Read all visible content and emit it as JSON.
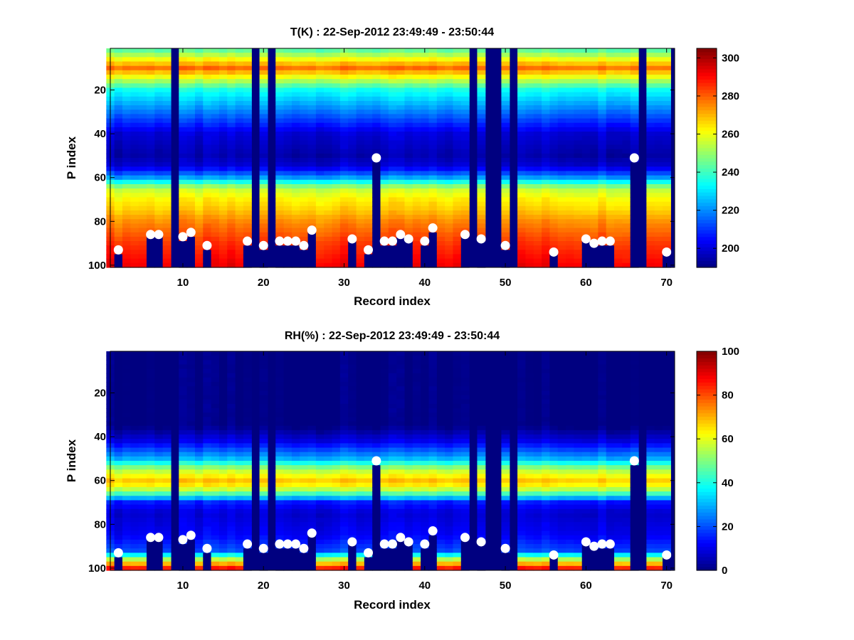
{
  "chart_data": [
    {
      "type": "heatmap",
      "title": "T(K) : 22-Sep-2012 23:49:49 - 23:50:44",
      "xlabel": "Record index",
      "ylabel": "P index",
      "x_ticks": [
        10,
        20,
        30,
        40,
        50,
        60,
        70
      ],
      "y_ticks": [
        20,
        40,
        60,
        80,
        100
      ],
      "xlim": [
        1,
        71
      ],
      "ylim": [
        1,
        101
      ],
      "y_reversed": true,
      "colormap": "jet",
      "clim": [
        190,
        305
      ],
      "colorbar_ticks": [
        200,
        220,
        240,
        260,
        280,
        300
      ],
      "missing_records": [
        9,
        19,
        21,
        46,
        48,
        49,
        51,
        67
      ],
      "profile_shape": {
        "description": "columnwise vertical profile",
        "levels": [
          1,
          10,
          20,
          30,
          40,
          50,
          55,
          60,
          65,
          70,
          75,
          80,
          85,
          90,
          100
        ],
        "values": [
          240,
          278,
          235,
          218,
          200,
          195,
          200,
          222,
          255,
          263,
          268,
          275,
          280,
          285,
          292
        ]
      },
      "marker_color": "#ffffff",
      "markers": [
        {
          "record": 2,
          "level": 93
        },
        {
          "record": 6,
          "level": 86
        },
        {
          "record": 7,
          "level": 86
        },
        {
          "record": 10,
          "level": 87
        },
        {
          "record": 11,
          "level": 85
        },
        {
          "record": 13,
          "level": 91
        },
        {
          "record": 18,
          "level": 89
        },
        {
          "record": 20,
          "level": 91
        },
        {
          "record": 22,
          "level": 89
        },
        {
          "record": 23,
          "level": 89
        },
        {
          "record": 24,
          "level": 89
        },
        {
          "record": 25,
          "level": 91
        },
        {
          "record": 26,
          "level": 84
        },
        {
          "record": 31,
          "level": 88
        },
        {
          "record": 33,
          "level": 93
        },
        {
          "record": 34,
          "level": 51
        },
        {
          "record": 35,
          "level": 89
        },
        {
          "record": 36,
          "level": 89
        },
        {
          "record": 37,
          "level": 86
        },
        {
          "record": 38,
          "level": 88
        },
        {
          "record": 40,
          "level": 89
        },
        {
          "record": 41,
          "level": 83
        },
        {
          "record": 45,
          "level": 86
        },
        {
          "record": 47,
          "level": 88
        },
        {
          "record": 50,
          "level": 91
        },
        {
          "record": 56,
          "level": 94
        },
        {
          "record": 60,
          "level": 88
        },
        {
          "record": 61,
          "level": 90
        },
        {
          "record": 62,
          "level": 89
        },
        {
          "record": 63,
          "level": 89
        },
        {
          "record": 66,
          "level": 51
        },
        {
          "record": 70,
          "level": 94
        }
      ]
    },
    {
      "type": "heatmap",
      "title": "RH(%) : 22-Sep-2012 23:49:49 - 23:50:44",
      "xlabel": "Record index",
      "ylabel": "P index",
      "x_ticks": [
        10,
        20,
        30,
        40,
        50,
        60,
        70
      ],
      "y_ticks": [
        20,
        40,
        60,
        80,
        100
      ],
      "xlim": [
        1,
        71
      ],
      "ylim": [
        1,
        101
      ],
      "y_reversed": true,
      "colormap": "jet",
      "clim": [
        0,
        100
      ],
      "colorbar_ticks": [
        0,
        20,
        40,
        60,
        80,
        100
      ],
      "missing_records": [
        9,
        19,
        21,
        46,
        48,
        49,
        51,
        67
      ],
      "profile_shape": {
        "description": "columnwise vertical profile",
        "levels": [
          1,
          35,
          42,
          50,
          55,
          60,
          63,
          66,
          70,
          75,
          85,
          92,
          96,
          100
        ],
        "values": [
          0,
          0,
          10,
          30,
          55,
          68,
          62,
          45,
          15,
          8,
          12,
          20,
          55,
          85
        ]
      },
      "marker_color": "#ffffff",
      "markers": [
        {
          "record": 2,
          "level": 93
        },
        {
          "record": 6,
          "level": 86
        },
        {
          "record": 7,
          "level": 86
        },
        {
          "record": 10,
          "level": 87
        },
        {
          "record": 11,
          "level": 85
        },
        {
          "record": 13,
          "level": 91
        },
        {
          "record": 18,
          "level": 89
        },
        {
          "record": 20,
          "level": 91
        },
        {
          "record": 22,
          "level": 89
        },
        {
          "record": 23,
          "level": 89
        },
        {
          "record": 24,
          "level": 89
        },
        {
          "record": 25,
          "level": 91
        },
        {
          "record": 26,
          "level": 84
        },
        {
          "record": 31,
          "level": 88
        },
        {
          "record": 33,
          "level": 93
        },
        {
          "record": 34,
          "level": 51
        },
        {
          "record": 35,
          "level": 89
        },
        {
          "record": 36,
          "level": 89
        },
        {
          "record": 37,
          "level": 86
        },
        {
          "record": 38,
          "level": 88
        },
        {
          "record": 40,
          "level": 89
        },
        {
          "record": 41,
          "level": 83
        },
        {
          "record": 45,
          "level": 86
        },
        {
          "record": 47,
          "level": 88
        },
        {
          "record": 50,
          "level": 91
        },
        {
          "record": 56,
          "level": 94
        },
        {
          "record": 60,
          "level": 88
        },
        {
          "record": 61,
          "level": 90
        },
        {
          "record": 62,
          "level": 89
        },
        {
          "record": 63,
          "level": 89
        },
        {
          "record": 66,
          "level": 51
        },
        {
          "record": 70,
          "level": 94
        }
      ]
    }
  ]
}
